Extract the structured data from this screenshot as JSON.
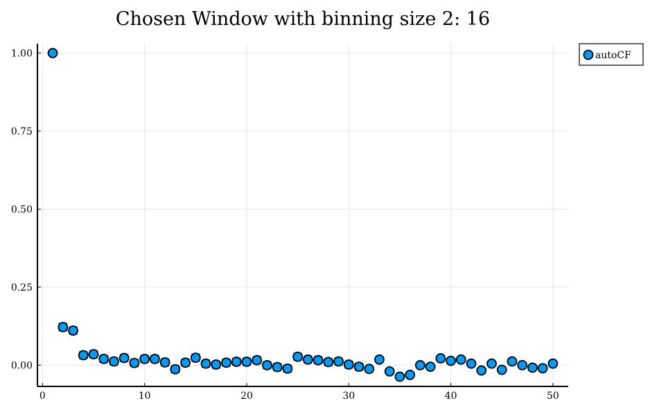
{
  "chart_data": {
    "type": "scatter",
    "title": "Chosen Window with binning size 2: 16",
    "xlabel": "",
    "ylabel": "",
    "xlim": [
      -0.5,
      51.5
    ],
    "ylim": [
      -0.068,
      1.03
    ],
    "xticks": [
      0,
      10,
      20,
      30,
      40,
      50
    ],
    "xtick_labels": [
      "0",
      "10",
      "20",
      "30",
      "40",
      "50"
    ],
    "yticks": [
      0.0,
      0.25,
      0.5,
      0.75,
      1.0
    ],
    "ytick_labels": [
      "0.00",
      "0.25",
      "0.50",
      "0.75",
      "1.00"
    ],
    "grid": true,
    "legend": {
      "position": "outside-top-right"
    },
    "series": [
      {
        "name": "autoCF",
        "color": "#009af9",
        "marker": "circle",
        "x": [
          1,
          2,
          3,
          4,
          5,
          6,
          7,
          8,
          9,
          10,
          11,
          12,
          13,
          14,
          15,
          16,
          17,
          18,
          19,
          20,
          21,
          22,
          23,
          24,
          25,
          26,
          27,
          28,
          29,
          30,
          31,
          32,
          33,
          34,
          35,
          36,
          37,
          38,
          39,
          40,
          41,
          42,
          43,
          44,
          45,
          46,
          47,
          48,
          49,
          50
        ],
        "y": [
          1.0,
          0.122,
          0.111,
          0.032,
          0.035,
          0.02,
          0.012,
          0.023,
          0.007,
          0.02,
          0.02,
          0.009,
          -0.013,
          0.008,
          0.024,
          0.005,
          0.002,
          0.008,
          0.011,
          0.011,
          0.016,
          0.0,
          -0.006,
          -0.011,
          0.027,
          0.018,
          0.016,
          0.01,
          0.012,
          0.002,
          -0.005,
          -0.012,
          0.018,
          -0.02,
          -0.037,
          -0.031,
          0.0,
          -0.005,
          0.022,
          0.014,
          0.018,
          0.005,
          -0.017,
          0.005,
          -0.015,
          0.012,
          0.0,
          -0.008,
          -0.01,
          0.005
        ],
        "err": [
          0,
          0.012,
          0.011,
          0.011,
          0.011,
          0.011,
          0.011,
          0.011,
          0.011,
          0.011,
          0.011,
          0.011,
          0.011,
          0.011,
          0.011,
          0.011,
          0.011,
          0.011,
          0.011,
          0.011,
          0.011,
          0.011,
          0.011,
          0.011,
          0.011,
          0.011,
          0.011,
          0.011,
          0.011,
          0.011,
          0.011,
          0.0,
          0.0,
          0.0,
          0.0,
          0.0,
          0.0,
          0.0,
          0.0,
          0.0,
          0.0,
          0.0,
          0.0,
          0.0,
          0.0,
          0.0,
          0.0,
          0.0,
          0.0,
          0.0
        ]
      }
    ]
  }
}
